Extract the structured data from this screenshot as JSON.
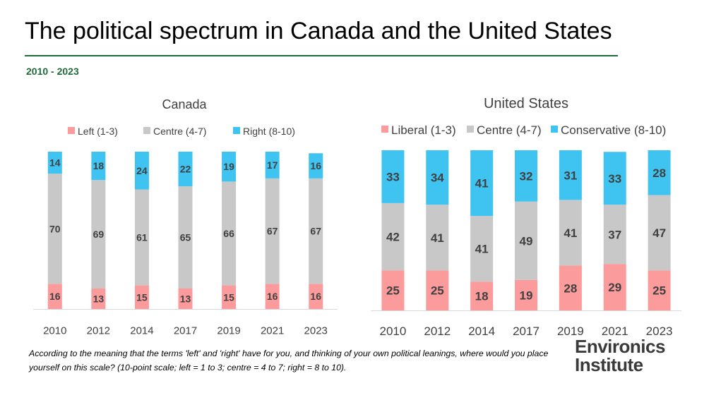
{
  "title": "The political spectrum in Canada and the United States",
  "subtitle": "2010 - 2023",
  "footnote": "According to the meaning that the terms 'left' and 'right' have for you, and thinking of your own political leanings, where would you place yourself on this scale? (10-point scale; left = 1 to 3; centre = 4 to 7; right = 8 to 10).",
  "logo": {
    "line1": "Environics",
    "line2": "Institute"
  },
  "colors": {
    "left": "#fb9b9c",
    "centre": "#c8c8c8",
    "right": "#3fc4f1",
    "brand_green": "#1f6b3a"
  },
  "chart_data": [
    {
      "type": "bar",
      "stacked": true,
      "title": "Canada",
      "categories": [
        "2010",
        "2012",
        "2014",
        "2017",
        "2019",
        "2021",
        "2023"
      ],
      "legend_position": "top",
      "series": [
        {
          "name": "Left (1-3)",
          "color": "#fb9b9c",
          "values": [
            16,
            13,
            15,
            13,
            15,
            16,
            16
          ]
        },
        {
          "name": "Centre (4-7)",
          "color": "#c8c8c8",
          "values": [
            70,
            69,
            61,
            65,
            66,
            67,
            67
          ]
        },
        {
          "name": "Right (8-10)",
          "color": "#3fc4f1",
          "values": [
            14,
            18,
            24,
            22,
            19,
            17,
            16
          ]
        }
      ],
      "ylim": [
        0,
        100
      ],
      "grid": false
    },
    {
      "type": "bar",
      "stacked": true,
      "title": "United States",
      "categories": [
        "2010",
        "2012",
        "2014",
        "2017",
        "2019",
        "2021",
        "2023"
      ],
      "legend_position": "top",
      "series": [
        {
          "name": "Liberal (1-3)",
          "color": "#fb9b9c",
          "values": [
            25,
            25,
            18,
            19,
            28,
            29,
            25
          ]
        },
        {
          "name": "Centre (4-7)",
          "color": "#c8c8c8",
          "values": [
            42,
            41,
            41,
            49,
            41,
            37,
            47
          ]
        },
        {
          "name": "Conservative (8-10)",
          "color": "#3fc4f1",
          "values": [
            33,
            34,
            41,
            32,
            31,
            33,
            28
          ]
        }
      ],
      "ylim": [
        0,
        100
      ],
      "grid": false
    }
  ]
}
